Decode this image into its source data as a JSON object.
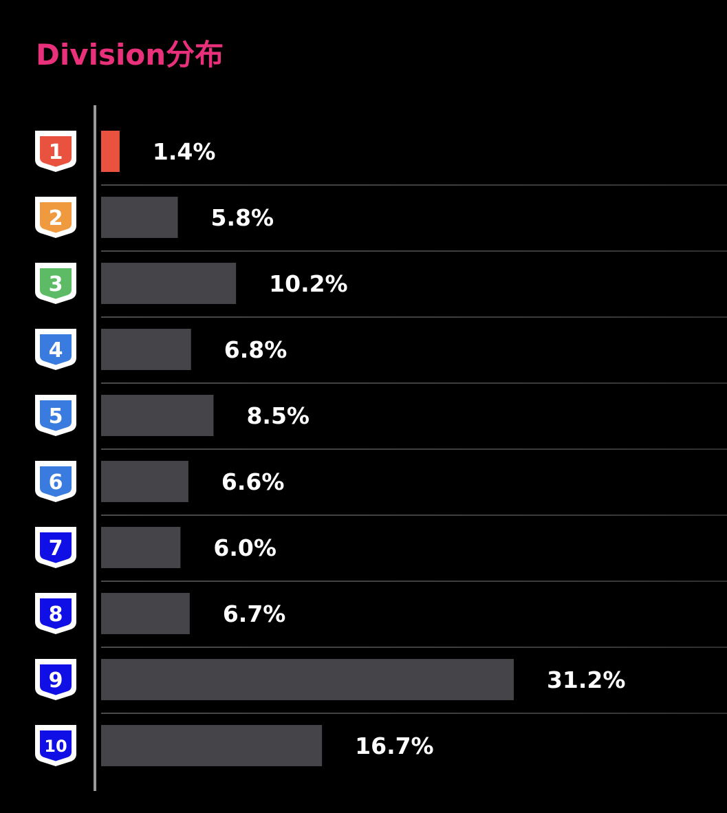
{
  "chart_data": {
    "type": "bar",
    "orientation": "horizontal",
    "title": "Division分布",
    "categories": [
      "1",
      "2",
      "3",
      "4",
      "5",
      "6",
      "7",
      "8",
      "9",
      "10"
    ],
    "values": [
      1.4,
      5.8,
      10.2,
      6.8,
      8.5,
      6.6,
      6.0,
      6.7,
      31.2,
      16.7
    ],
    "value_labels": [
      "1.4%",
      "5.8%",
      "10.2%",
      "6.8%",
      "8.5%",
      "6.6%",
      "6.0%",
      "6.7%",
      "31.2%",
      "16.7%"
    ],
    "unit": "%",
    "highlight_index": 0,
    "grid": false,
    "legend": "none"
  },
  "colors": {
    "background": "#000000",
    "title": "#e8317a",
    "bar_default": "#444449",
    "bar_highlight": "#e8523f",
    "axis_line": "#9a9a9a",
    "separator": "#3c3c3c",
    "value_label": "#ffffff",
    "badge_border": "#ffffff",
    "badge_colors": [
      "#e8523f",
      "#ef9a3e",
      "#5cbb64",
      "#3a7be0",
      "#3a7be0",
      "#3a7be0",
      "#1010e6",
      "#1010e6",
      "#1010e6",
      "#1010e6"
    ]
  },
  "icons": {
    "badge": "shield-icon"
  }
}
